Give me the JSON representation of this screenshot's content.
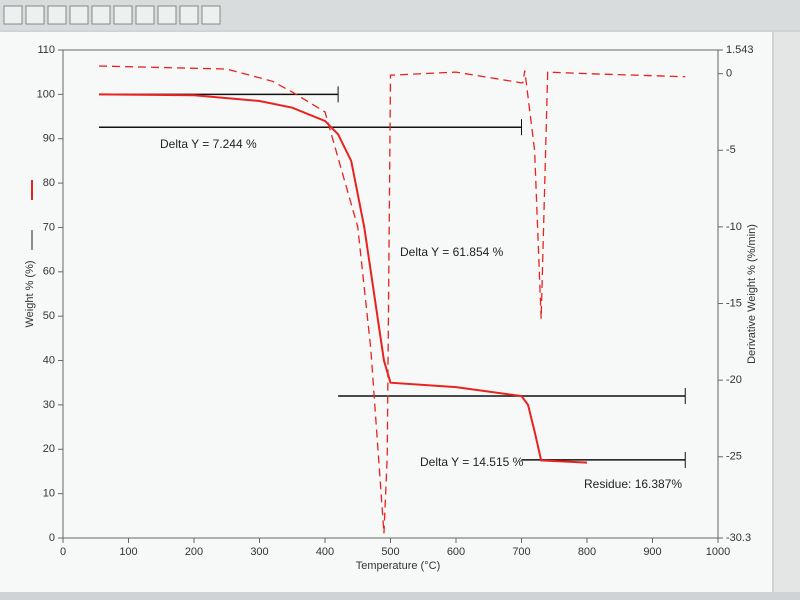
{
  "chart_data": {
    "type": "line",
    "x_label": "Temperature (°C)",
    "y_label": "Weight % (%)",
    "y2_label": "Derivative Weight % (%/min)",
    "xlim": [
      0,
      1000
    ],
    "xticks": [
      0,
      100,
      200,
      300,
      400,
      500,
      600,
      700,
      800,
      900,
      1000
    ],
    "ylim": [
      0,
      110
    ],
    "yticks": [
      0,
      10,
      20,
      30,
      40,
      50,
      60,
      70,
      80,
      90,
      100,
      110
    ],
    "y2lim": [
      -30.3,
      1.543
    ],
    "y2ticks": [
      1.543,
      0,
      -5,
      -10,
      -15,
      -20,
      -25,
      -30.3
    ],
    "series": [
      {
        "color": "#e8231f",
        "style": "solid",
        "x": [
          55,
          200,
          300,
          350,
          400,
          420,
          440,
          460,
          480,
          490,
          500,
          600,
          700,
          710,
          720,
          730,
          800
        ],
        "values": [
          100,
          99.8,
          98.5,
          97,
          94,
          91,
          85,
          70,
          50,
          40,
          35,
          34,
          32,
          30,
          24,
          17.5,
          17
        ]
      },
      {
        "color": "#e8231f",
        "style": "dashed",
        "axis": "y2",
        "x": [
          55,
          250,
          320,
          350,
          400,
          450,
          470,
          480,
          490,
          495,
          500,
          600,
          700,
          702,
          705,
          720,
          730,
          740,
          800,
          950
        ],
        "values": [
          0.5,
          0.3,
          -0.5,
          -1.2,
          -2.5,
          -10,
          -18,
          -24,
          -30,
          -25,
          -0.1,
          0.1,
          -0.6,
          -0.6,
          0.2,
          -5,
          -16,
          0.1,
          0,
          -0.2
        ]
      }
    ],
    "reference_lines": [
      {
        "x": [
          55,
          420
        ],
        "y": 100
      },
      {
        "x": [
          55,
          700
        ],
        "y": 92.6
      },
      {
        "x": [
          420,
          950
        ],
        "y": 32
      },
      {
        "x": [
          700,
          950
        ],
        "y": 17.6
      }
    ],
    "annotations": [
      "Delta Y = 7.244 %",
      "Delta Y = 61.854 %",
      "Delta Y = 14.515 %",
      "Residue:  16.387%"
    ]
  }
}
